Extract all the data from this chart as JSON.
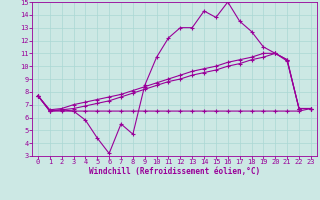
{
  "xlabel": "Windchill (Refroidissement éolien,°C)",
  "ylabel": "",
  "background_color": "#cce8e4",
  "line_color": "#990099",
  "grid_color": "#aad8d4",
  "xlim": [
    -0.5,
    23.5
  ],
  "ylim": [
    3,
    15
  ],
  "xticks": [
    0,
    1,
    2,
    3,
    4,
    5,
    6,
    7,
    8,
    9,
    10,
    11,
    12,
    13,
    14,
    15,
    16,
    17,
    18,
    19,
    20,
    21,
    22,
    23
  ],
  "yticks": [
    3,
    4,
    5,
    6,
    7,
    8,
    9,
    10,
    11,
    12,
    13,
    14,
    15
  ],
  "line1_x": [
    0,
    1,
    2,
    3,
    4,
    5,
    6,
    7,
    8,
    9,
    10,
    11,
    12,
    13,
    14,
    15,
    16,
    17,
    18,
    19,
    20,
    21,
    22,
    23
  ],
  "line1_y": [
    7.7,
    6.5,
    6.6,
    6.5,
    5.8,
    4.4,
    3.2,
    5.5,
    4.7,
    8.5,
    10.7,
    12.2,
    13.0,
    13.0,
    14.3,
    13.8,
    15.0,
    13.5,
    12.7,
    11.5,
    11.0,
    10.5,
    6.7,
    6.7
  ],
  "line2_x": [
    0,
    1,
    2,
    3,
    4,
    5,
    6,
    7,
    8,
    9,
    10,
    11,
    12,
    13,
    14,
    15,
    16,
    17,
    18,
    19,
    20,
    21,
    22,
    23
  ],
  "line2_y": [
    7.7,
    6.6,
    6.7,
    7.0,
    7.2,
    7.4,
    7.6,
    7.8,
    8.1,
    8.4,
    8.7,
    9.0,
    9.3,
    9.6,
    9.8,
    10.0,
    10.3,
    10.5,
    10.7,
    11.0,
    11.0,
    10.5,
    6.7,
    6.7
  ],
  "line3_x": [
    0,
    1,
    2,
    3,
    4,
    5,
    6,
    7,
    8,
    9,
    10,
    11,
    12,
    13,
    14,
    15,
    16,
    17,
    18,
    19,
    20,
    21,
    22,
    23
  ],
  "line3_y": [
    7.7,
    6.5,
    6.6,
    6.7,
    6.9,
    7.1,
    7.3,
    7.6,
    7.9,
    8.2,
    8.5,
    8.8,
    9.0,
    9.3,
    9.5,
    9.7,
    10.0,
    10.2,
    10.5,
    10.7,
    11.0,
    10.4,
    6.7,
    6.7
  ],
  "line4_x": [
    0,
    1,
    2,
    3,
    4,
    5,
    6,
    7,
    8,
    9,
    10,
    11,
    12,
    13,
    14,
    15,
    16,
    17,
    18,
    19,
    20,
    21,
    22,
    23
  ],
  "line4_y": [
    7.7,
    6.5,
    6.5,
    6.5,
    6.5,
    6.5,
    6.5,
    6.5,
    6.5,
    6.5,
    6.5,
    6.5,
    6.5,
    6.5,
    6.5,
    6.5,
    6.5,
    6.5,
    6.5,
    6.5,
    6.5,
    6.5,
    6.5,
    6.7
  ],
  "marker": "+",
  "markersize": 3,
  "linewidth": 0.8,
  "tick_fontsize": 5,
  "xlabel_fontsize": 5.5,
  "xlabel_fontweight": "bold"
}
